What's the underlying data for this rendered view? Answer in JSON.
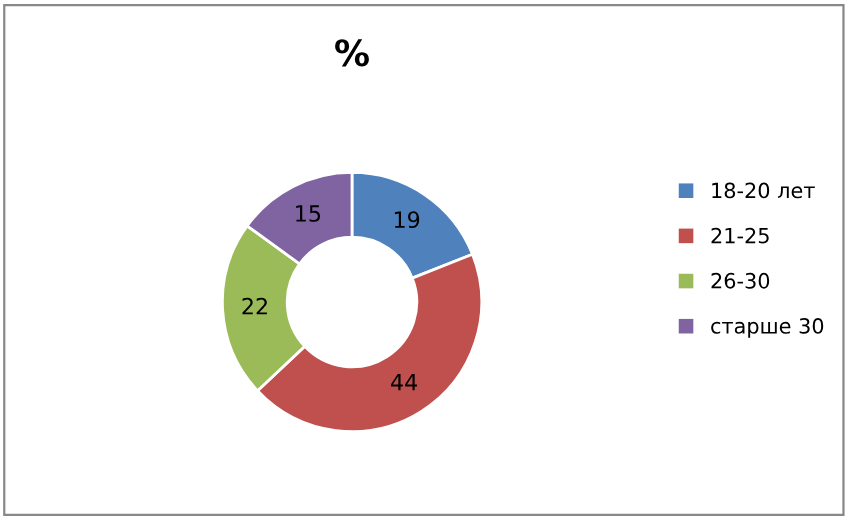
{
  "chart_data": {
    "type": "donut",
    "title": "%",
    "categories": [
      "18-20 лет",
      "21-25",
      "26-30",
      "старше 30"
    ],
    "values": [
      19,
      44,
      22,
      15
    ],
    "colors": [
      "#4f81bd",
      "#c0504d",
      "#9bbb59",
      "#8064a2"
    ],
    "data_labels": true,
    "legend": "right"
  }
}
